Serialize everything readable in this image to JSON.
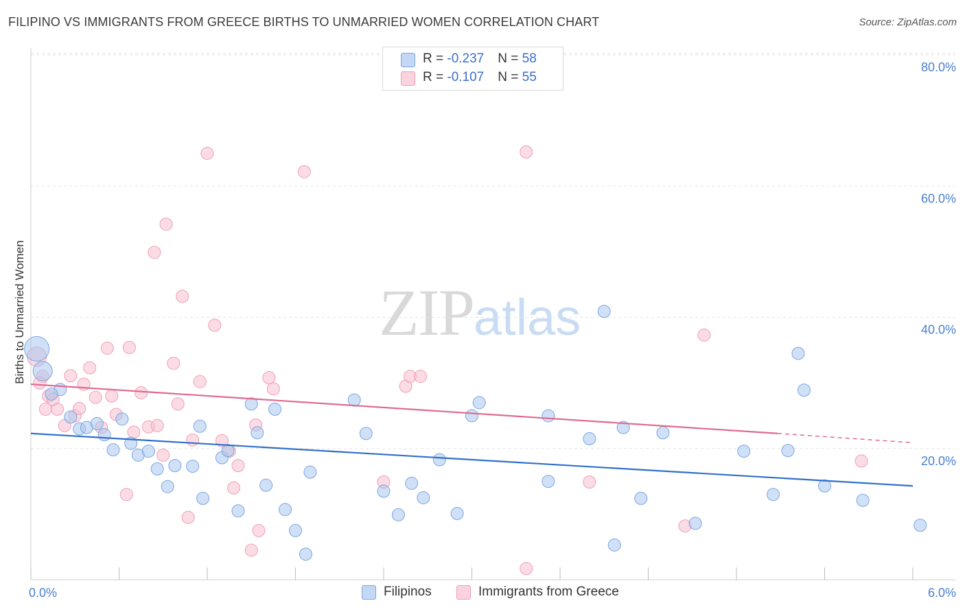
{
  "header": {
    "title": "FILIPINO VS IMMIGRANTS FROM GREECE BIRTHS TO UNMARRIED WOMEN CORRELATION CHART",
    "source": "Source: ZipAtlas.com"
  },
  "watermark": {
    "zip": "ZIP",
    "atlas": "atlas"
  },
  "legend": {
    "filipinos": {
      "r_label": "R = ",
      "r_value": "-0.237",
      "n_label": "N = ",
      "n_value": "58"
    },
    "greece": {
      "r_label": "R = ",
      "r_value": "-0.107",
      "n_label": "N = ",
      "n_value": "55"
    }
  },
  "colors": {
    "filipinos_fill": "#a9c6ef",
    "filipinos_stroke": "#7aa6e0",
    "filipinos_line": "#2f6fcb",
    "greece_fill": "#f7bfd0",
    "greece_stroke": "#ee9fb9",
    "greece_line": "#e0688f",
    "axis_text": "#4a7fd0",
    "grid": "#e3e3e3"
  },
  "chart_data": {
    "type": "scatter",
    "title": "FILIPINO VS IMMIGRANTS FROM GREECE BIRTHS TO UNMARRIED WOMEN CORRELATION CHART",
    "xlabel": "",
    "ylabel": "Births to Unmarried Women",
    "xlim": [
      0,
      6
    ],
    "ylim": [
      0,
      80
    ],
    "x_tick_labels": [
      "0.0%",
      "6.0%"
    ],
    "y_ticks": [
      20,
      40,
      60,
      80
    ],
    "y_tick_labels": [
      "20.0%",
      "40.0%",
      "60.0%",
      "80.0%"
    ],
    "grid": true,
    "legend_position": "top-center",
    "series": [
      {
        "name": "Filipinos",
        "r": -0.237,
        "n": 58,
        "trend": {
          "x": [
            0.0,
            6.0
          ],
          "y": [
            22.3,
            14.3
          ]
        },
        "points": [
          {
            "x": 0.04,
            "y": 35.2,
            "s": 3
          },
          {
            "x": 0.08,
            "y": 31.8,
            "s": 2
          },
          {
            "x": 0.2,
            "y": 29.0,
            "s": 1
          },
          {
            "x": 0.14,
            "y": 28.3,
            "s": 1
          },
          {
            "x": 0.27,
            "y": 24.8,
            "s": 1
          },
          {
            "x": 0.33,
            "y": 23.0,
            "s": 1
          },
          {
            "x": 0.38,
            "y": 23.2,
            "s": 1
          },
          {
            "x": 0.45,
            "y": 23.8,
            "s": 1
          },
          {
            "x": 0.5,
            "y": 22.1,
            "s": 1
          },
          {
            "x": 0.56,
            "y": 19.8,
            "s": 1
          },
          {
            "x": 0.62,
            "y": 24.5,
            "s": 1
          },
          {
            "x": 0.68,
            "y": 20.8,
            "s": 1
          },
          {
            "x": 0.73,
            "y": 19.0,
            "s": 1
          },
          {
            "x": 0.8,
            "y": 19.6,
            "s": 1
          },
          {
            "x": 0.86,
            "y": 16.9,
            "s": 1
          },
          {
            "x": 0.93,
            "y": 14.2,
            "s": 1
          },
          {
            "x": 0.98,
            "y": 17.4,
            "s": 1
          },
          {
            "x": 1.1,
            "y": 17.3,
            "s": 1
          },
          {
            "x": 1.15,
            "y": 23.4,
            "s": 1
          },
          {
            "x": 1.17,
            "y": 12.4,
            "s": 1
          },
          {
            "x": 1.3,
            "y": 18.6,
            "s": 1
          },
          {
            "x": 1.34,
            "y": 19.7,
            "s": 1
          },
          {
            "x": 1.41,
            "y": 10.5,
            "s": 1
          },
          {
            "x": 1.5,
            "y": 26.8,
            "s": 1
          },
          {
            "x": 1.54,
            "y": 22.4,
            "s": 1
          },
          {
            "x": 1.6,
            "y": 14.4,
            "s": 1
          },
          {
            "x": 1.66,
            "y": 26.0,
            "s": 1
          },
          {
            "x": 1.73,
            "y": 10.7,
            "s": 1
          },
          {
            "x": 1.8,
            "y": 7.5,
            "s": 1
          },
          {
            "x": 1.87,
            "y": 3.9,
            "s": 1
          },
          {
            "x": 1.9,
            "y": 16.4,
            "s": 1
          },
          {
            "x": 2.2,
            "y": 27.4,
            "s": 1
          },
          {
            "x": 2.28,
            "y": 22.3,
            "s": 1
          },
          {
            "x": 2.4,
            "y": 13.5,
            "s": 1
          },
          {
            "x": 2.5,
            "y": 9.9,
            "s": 1
          },
          {
            "x": 2.59,
            "y": 14.7,
            "s": 1
          },
          {
            "x": 2.67,
            "y": 12.5,
            "s": 1
          },
          {
            "x": 2.78,
            "y": 18.3,
            "s": 1
          },
          {
            "x": 2.9,
            "y": 10.1,
            "s": 1
          },
          {
            "x": 3.0,
            "y": 25.0,
            "s": 1
          },
          {
            "x": 3.05,
            "y": 27.0,
            "s": 1
          },
          {
            "x": 3.52,
            "y": 25.0,
            "s": 1
          },
          {
            "x": 3.52,
            "y": 15.0,
            "s": 1
          },
          {
            "x": 3.8,
            "y": 21.5,
            "s": 1
          },
          {
            "x": 3.9,
            "y": 40.9,
            "s": 1
          },
          {
            "x": 3.97,
            "y": 5.3,
            "s": 1
          },
          {
            "x": 4.03,
            "y": 23.2,
            "s": 1
          },
          {
            "x": 4.15,
            "y": 12.4,
            "s": 1
          },
          {
            "x": 4.3,
            "y": 22.4,
            "s": 1
          },
          {
            "x": 4.52,
            "y": 8.6,
            "s": 1
          },
          {
            "x": 4.85,
            "y": 19.6,
            "s": 1
          },
          {
            "x": 5.05,
            "y": 13.0,
            "s": 1
          },
          {
            "x": 5.15,
            "y": 19.7,
            "s": 1
          },
          {
            "x": 5.22,
            "y": 34.5,
            "s": 1
          },
          {
            "x": 5.26,
            "y": 28.9,
            "s": 1
          },
          {
            "x": 5.4,
            "y": 14.3,
            "s": 1
          },
          {
            "x": 5.66,
            "y": 12.1,
            "s": 1
          },
          {
            "x": 6.05,
            "y": 8.3,
            "s": 1
          }
        ]
      },
      {
        "name": "Immigrants from Greece",
        "r": -0.107,
        "n": 55,
        "trend": {
          "x": [
            0.0,
            5.08,
            6.0
          ],
          "y": [
            29.8,
            22.3,
            20.9
          ],
          "dashed_from": 5.08
        },
        "points": [
          {
            "x": 0.04,
            "y": 34.0,
            "s": 2
          },
          {
            "x": 0.08,
            "y": 31.0,
            "s": 1
          },
          {
            "x": 0.12,
            "y": 28.0,
            "s": 1
          },
          {
            "x": 0.1,
            "y": 26.0,
            "s": 1
          },
          {
            "x": 0.18,
            "y": 26.0,
            "s": 1
          },
          {
            "x": 0.23,
            "y": 23.5,
            "s": 1
          },
          {
            "x": 0.27,
            "y": 31.1,
            "s": 1
          },
          {
            "x": 0.3,
            "y": 25.0,
            "s": 1
          },
          {
            "x": 0.33,
            "y": 26.1,
            "s": 1
          },
          {
            "x": 0.36,
            "y": 29.8,
            "s": 1
          },
          {
            "x": 0.4,
            "y": 32.3,
            "s": 1
          },
          {
            "x": 0.44,
            "y": 27.8,
            "s": 1
          },
          {
            "x": 0.48,
            "y": 23.2,
            "s": 1
          },
          {
            "x": 0.52,
            "y": 35.3,
            "s": 1
          },
          {
            "x": 0.55,
            "y": 28.0,
            "s": 1
          },
          {
            "x": 0.58,
            "y": 25.2,
            "s": 1
          },
          {
            "x": 0.65,
            "y": 13.0,
            "s": 1
          },
          {
            "x": 0.67,
            "y": 35.4,
            "s": 1
          },
          {
            "x": 0.7,
            "y": 22.5,
            "s": 1
          },
          {
            "x": 0.75,
            "y": 28.5,
            "s": 1
          },
          {
            "x": 0.8,
            "y": 23.3,
            "s": 1
          },
          {
            "x": 0.84,
            "y": 49.9,
            "s": 1
          },
          {
            "x": 0.86,
            "y": 23.5,
            "s": 1
          },
          {
            "x": 0.9,
            "y": 19.0,
            "s": 1
          },
          {
            "x": 0.92,
            "y": 54.2,
            "s": 1
          },
          {
            "x": 0.97,
            "y": 33.0,
            "s": 1
          },
          {
            "x": 1.0,
            "y": 26.8,
            "s": 1
          },
          {
            "x": 1.03,
            "y": 43.2,
            "s": 1
          },
          {
            "x": 1.07,
            "y": 9.5,
            "s": 1
          },
          {
            "x": 1.1,
            "y": 21.3,
            "s": 1
          },
          {
            "x": 1.15,
            "y": 30.2,
            "s": 1
          },
          {
            "x": 1.2,
            "y": 65.0,
            "s": 1
          },
          {
            "x": 1.25,
            "y": 38.8,
            "s": 1
          },
          {
            "x": 1.3,
            "y": 21.2,
            "s": 1
          },
          {
            "x": 1.35,
            "y": 19.6,
            "s": 1
          },
          {
            "x": 1.38,
            "y": 14.0,
            "s": 1
          },
          {
            "x": 1.41,
            "y": 17.4,
            "s": 1
          },
          {
            "x": 1.5,
            "y": 4.5,
            "s": 1
          },
          {
            "x": 1.53,
            "y": 23.6,
            "s": 1
          },
          {
            "x": 1.55,
            "y": 7.5,
            "s": 1
          },
          {
            "x": 1.62,
            "y": 30.8,
            "s": 1
          },
          {
            "x": 1.65,
            "y": 29.1,
            "s": 1
          },
          {
            "x": 1.86,
            "y": 62.2,
            "s": 1
          },
          {
            "x": 2.4,
            "y": 14.9,
            "s": 1
          },
          {
            "x": 2.55,
            "y": 29.5,
            "s": 1
          },
          {
            "x": 2.58,
            "y": 31.0,
            "s": 1
          },
          {
            "x": 2.65,
            "y": 31.0,
            "s": 1
          },
          {
            "x": 3.37,
            "y": 65.2,
            "s": 1
          },
          {
            "x": 3.37,
            "y": 1.7,
            "s": 1
          },
          {
            "x": 3.8,
            "y": 14.9,
            "s": 1
          },
          {
            "x": 4.45,
            "y": 8.2,
            "s": 1
          },
          {
            "x": 4.58,
            "y": 37.3,
            "s": 1
          },
          {
            "x": 5.65,
            "y": 18.1,
            "s": 1
          },
          {
            "x": 0.06,
            "y": 30.0,
            "s": 1
          },
          {
            "x": 0.15,
            "y": 27.5,
            "s": 1
          }
        ]
      }
    ]
  }
}
